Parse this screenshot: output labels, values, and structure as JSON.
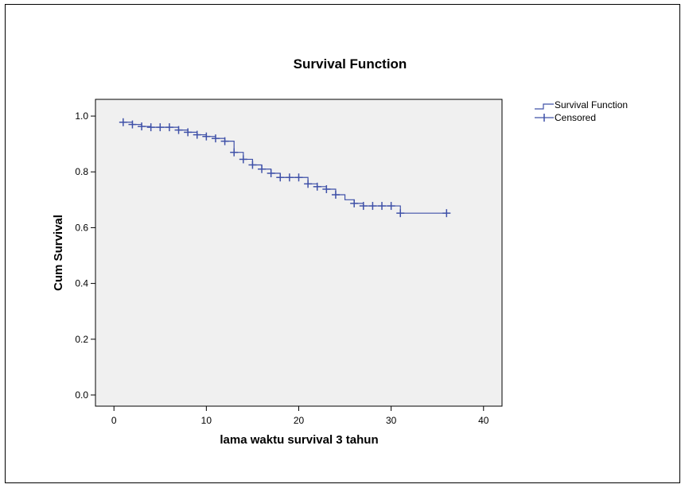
{
  "colors": {
    "plot_background": "#f0f0f0",
    "series_line": "#3f51a8",
    "axis": "#000000",
    "frame": "#000000"
  },
  "chart_data": {
    "type": "line",
    "title": "Survival Function",
    "xlabel": "lama waktu survival 3 tahun",
    "ylabel": "Cum Survival",
    "xlim": [
      -2,
      42
    ],
    "ylim": [
      -0.04,
      1.06
    ],
    "x_ticks": [
      {
        "value": 0,
        "label": "0"
      },
      {
        "value": 10,
        "label": "10"
      },
      {
        "value": 20,
        "label": "20"
      },
      {
        "value": 30,
        "label": "30"
      },
      {
        "value": 40,
        "label": "40"
      }
    ],
    "y_ticks": [
      {
        "value": 0.0,
        "label": "0.0"
      },
      {
        "value": 0.2,
        "label": "0.2"
      },
      {
        "value": 0.4,
        "label": "0.4"
      },
      {
        "value": 0.6,
        "label": "0.6"
      },
      {
        "value": 0.8,
        "label": "0.8"
      },
      {
        "value": 1.0,
        "label": "1.0"
      }
    ],
    "grid": false,
    "legend_position": "top-right-outside",
    "legend": [
      {
        "label": "Survival Function",
        "marker": "step-line"
      },
      {
        "label": "Censored",
        "marker": "plus"
      }
    ],
    "series": [
      {
        "name": "Survival Function",
        "step_points": [
          {
            "x": 1,
            "y": 0.978
          },
          {
            "x": 2,
            "y": 0.97
          },
          {
            "x": 3,
            "y": 0.963
          },
          {
            "x": 4,
            "y": 0.96
          },
          {
            "x": 7,
            "y": 0.95
          },
          {
            "x": 8,
            "y": 0.942
          },
          {
            "x": 9,
            "y": 0.933
          },
          {
            "x": 10,
            "y": 0.927
          },
          {
            "x": 11,
            "y": 0.92
          },
          {
            "x": 12,
            "y": 0.91
          },
          {
            "x": 13,
            "y": 0.87
          },
          {
            "x": 14,
            "y": 0.845
          },
          {
            "x": 15,
            "y": 0.825
          },
          {
            "x": 16,
            "y": 0.81
          },
          {
            "x": 17,
            "y": 0.795
          },
          {
            "x": 18,
            "y": 0.78
          },
          {
            "x": 21,
            "y": 0.757
          },
          {
            "x": 22,
            "y": 0.747
          },
          {
            "x": 23,
            "y": 0.738
          },
          {
            "x": 24,
            "y": 0.718
          },
          {
            "x": 25,
            "y": 0.7
          },
          {
            "x": 26,
            "y": 0.687
          },
          {
            "x": 27,
            "y": 0.678
          },
          {
            "x": 31,
            "y": 0.652
          },
          {
            "x": 36,
            "y": 0.652
          }
        ]
      },
      {
        "name": "Censored",
        "points": [
          {
            "x": 1,
            "y": 0.978
          },
          {
            "x": 2,
            "y": 0.97
          },
          {
            "x": 3,
            "y": 0.963
          },
          {
            "x": 4,
            "y": 0.96
          },
          {
            "x": 5,
            "y": 0.96
          },
          {
            "x": 6,
            "y": 0.96
          },
          {
            "x": 7,
            "y": 0.95
          },
          {
            "x": 8,
            "y": 0.942
          },
          {
            "x": 9,
            "y": 0.933
          },
          {
            "x": 10,
            "y": 0.927
          },
          {
            "x": 11,
            "y": 0.92
          },
          {
            "x": 12,
            "y": 0.91
          },
          {
            "x": 13,
            "y": 0.87
          },
          {
            "x": 14,
            "y": 0.845
          },
          {
            "x": 15,
            "y": 0.825
          },
          {
            "x": 16,
            "y": 0.81
          },
          {
            "x": 17,
            "y": 0.795
          },
          {
            "x": 18,
            "y": 0.78
          },
          {
            "x": 19,
            "y": 0.78
          },
          {
            "x": 20,
            "y": 0.78
          },
          {
            "x": 21,
            "y": 0.757
          },
          {
            "x": 22,
            "y": 0.747
          },
          {
            "x": 23,
            "y": 0.738
          },
          {
            "x": 24,
            "y": 0.718
          },
          {
            "x": 26,
            "y": 0.687
          },
          {
            "x": 27,
            "y": 0.678
          },
          {
            "x": 28,
            "y": 0.678
          },
          {
            "x": 29,
            "y": 0.678
          },
          {
            "x": 30,
            "y": 0.678
          },
          {
            "x": 31,
            "y": 0.652
          },
          {
            "x": 36,
            "y": 0.652
          }
        ]
      }
    ]
  }
}
